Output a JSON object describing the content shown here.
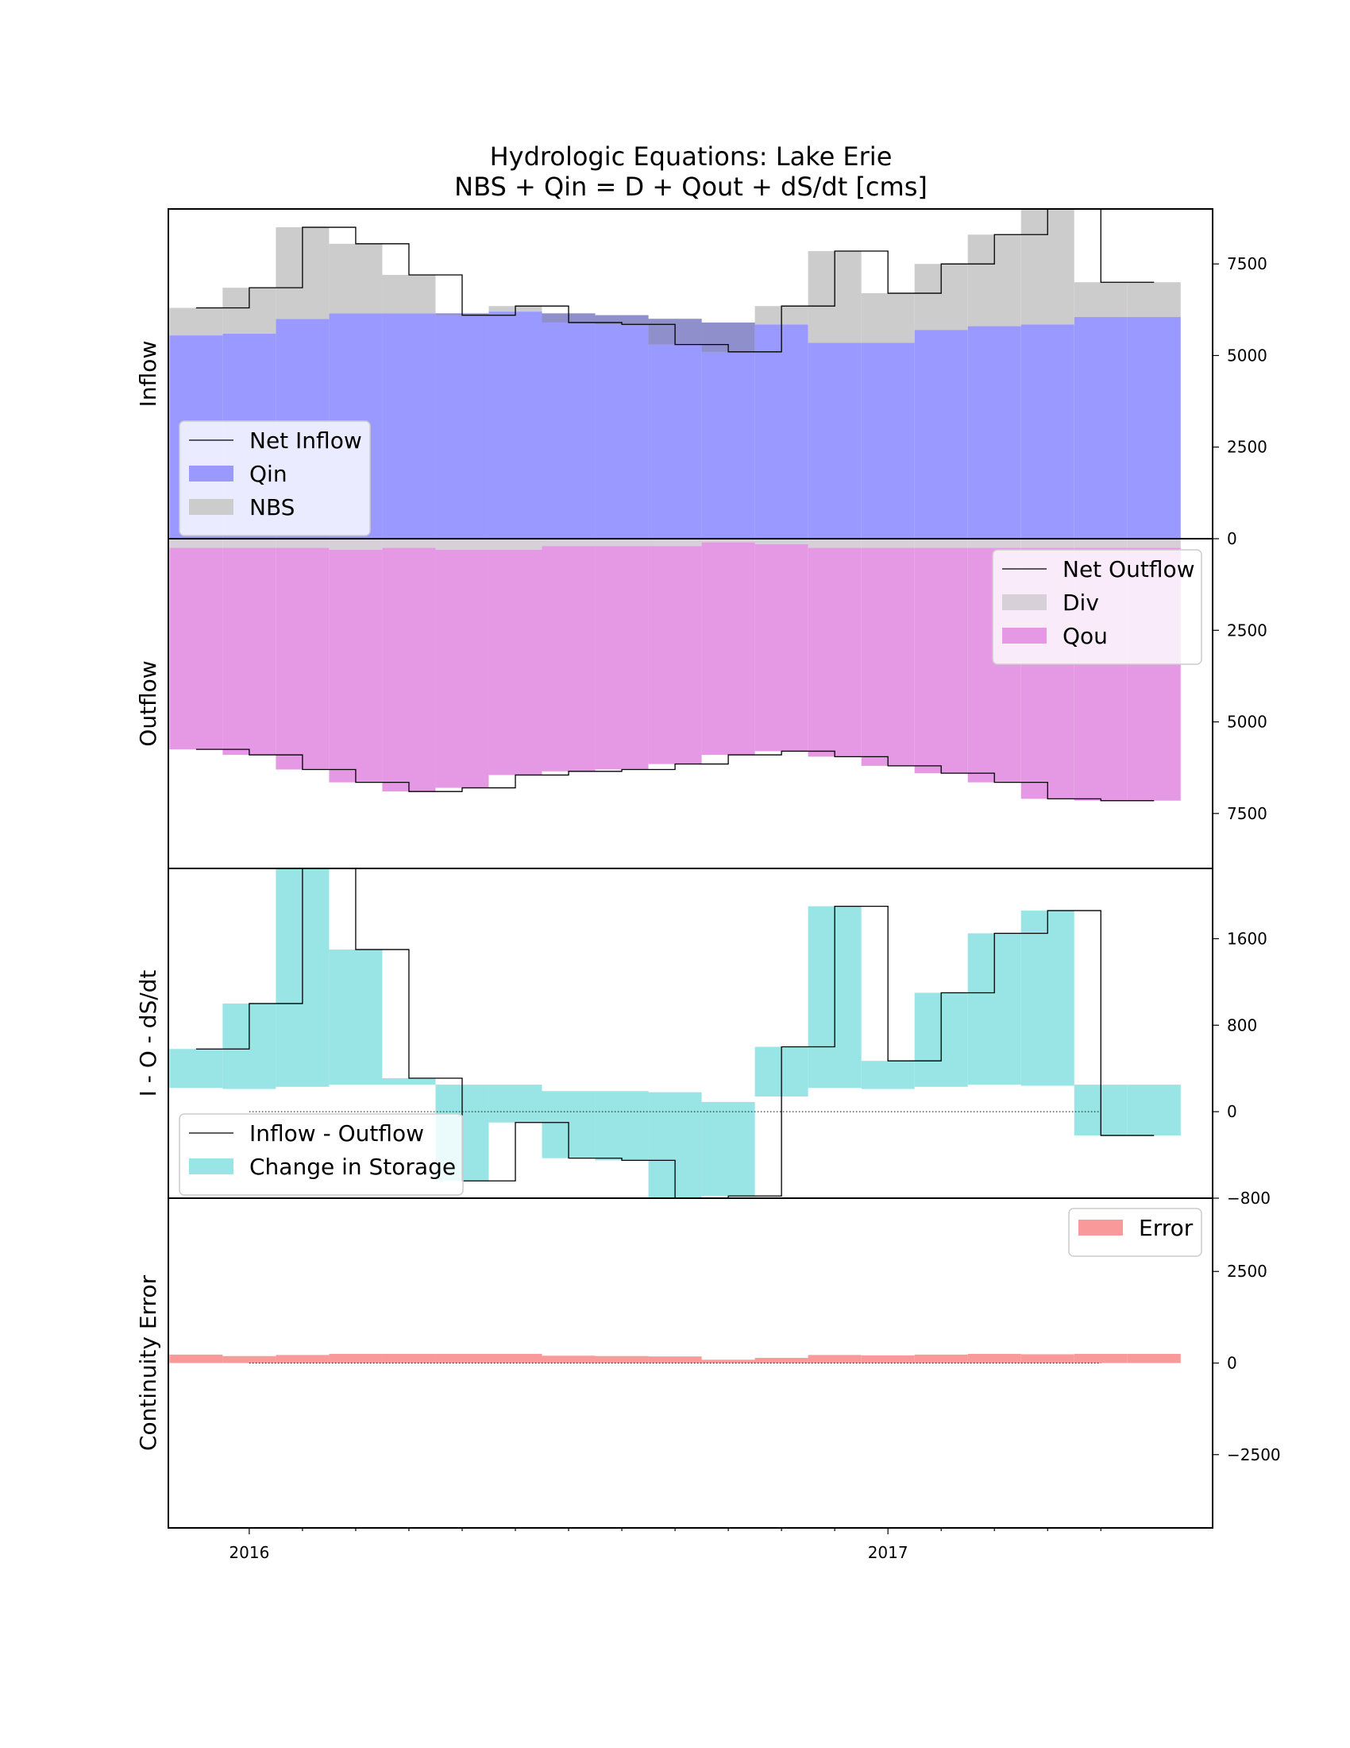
{
  "chart_data": {
    "title": "Hydrologic Equations: Lake Erie",
    "subtitle": "NBS + Qin = D + Qout + dS/dt [cms]",
    "type": "area",
    "x_ticks": [
      "2016",
      "2017"
    ],
    "months": [
      "2015-12",
      "2016-01",
      "2016-02",
      "2016-03",
      "2016-04",
      "2016-05",
      "2016-06",
      "2016-07",
      "2016-08",
      "2016-09",
      "2016-10",
      "2016-11",
      "2016-12",
      "2017-01",
      "2017-02",
      "2017-03",
      "2017-04",
      "2017-05",
      "2017-06"
    ],
    "panels": [
      {
        "ylabel": "Inflow",
        "ylim": [
          0,
          9000
        ],
        "y_ticks": [
          0,
          2500,
          5000,
          7500
        ],
        "legend_position": "lower-left",
        "series": [
          {
            "name": "Net Inflow",
            "kind": "step-line",
            "color": "#000000",
            "values": [
              6300,
              6850,
              8500,
              8050,
              7200,
              6100,
              6350,
              5900,
              5850,
              5300,
              5100,
              6350,
              7850,
              6700,
              7500,
              8300,
              9000,
              7000,
              7000
            ]
          },
          {
            "name": "Qin",
            "kind": "fill",
            "color": "#9999ff",
            "values": [
              5550,
              5600,
              6000,
              6150,
              6150,
              6150,
              6200,
              6150,
              6100,
              6000,
              5900,
              5850,
              5350,
              5350,
              5700,
              5800,
              5850,
              6050,
              6050
            ]
          },
          {
            "name": "NBS",
            "kind": "fill",
            "color": "#cccccc",
            "values": [
              750,
              1250,
              2500,
              1900,
              1050,
              -50,
              150,
              -250,
              -250,
              -700,
              -800,
              500,
              2500,
              1350,
              1800,
              2500,
              3150,
              950,
              950
            ]
          }
        ]
      },
      {
        "ylabel": "Outflow",
        "ylim": [
          9000,
          0
        ],
        "y_ticks": [
          2500,
          5000,
          7500
        ],
        "legend_position": "upper-right",
        "series": [
          {
            "name": "Net Outflow",
            "kind": "step-line",
            "color": "#000000",
            "values": [
              5750,
              5900,
              6300,
              6650,
              6900,
              6800,
              6450,
              6350,
              6300,
              6150,
              5900,
              5800,
              5950,
              6200,
              6400,
              6650,
              7100,
              7150,
              7150
            ]
          },
          {
            "name": "Div",
            "kind": "fill",
            "color": "#d8d0d8",
            "values": [
              250,
              250,
              250,
              300,
              250,
              300,
              300,
              200,
              200,
              200,
              100,
              150,
              250,
              250,
              250,
              250,
              250,
              250,
              250
            ]
          },
          {
            "name": "Qou",
            "kind": "fill",
            "color": "#e599e5",
            "values": [
              5500,
              5650,
              6050,
              6350,
              6650,
              6500,
              6150,
              6150,
              6100,
              5950,
              5800,
              5650,
              5700,
              5950,
              6150,
              6400,
              6850,
              6900,
              6900
            ]
          }
        ]
      },
      {
        "ylabel": "I - O - dS/dt",
        "ylim": [
          -800,
          2250
        ],
        "y_ticks": [
          -800,
          0,
          800,
          1600
        ],
        "legend_position": "lower-left",
        "zero_line": "dotted",
        "series": [
          {
            "name": "Inflow - Outflow",
            "kind": "step-line",
            "color": "#000000",
            "values": [
              580,
              1000,
              2250,
              1500,
              310,
              -640,
              -100,
              -430,
              -450,
              -850,
              -780,
              600,
              1900,
              470,
              1100,
              1650,
              1860,
              -220,
              -220
            ]
          },
          {
            "name": "Change in Storage",
            "kind": "fill-band",
            "color": "#99e5e5",
            "upper": [
              580,
              1000,
              2250,
              1500,
              310,
              250,
              250,
              190,
              190,
              180,
              90,
              600,
              1900,
              470,
              1100,
              1650,
              1860,
              250,
              250
            ],
            "lower": [
              220,
              210,
              230,
              250,
              250,
              -640,
              -100,
              -430,
              -450,
              -850,
              -780,
              140,
              220,
              210,
              230,
              250,
              240,
              -220,
              -220
            ]
          }
        ]
      },
      {
        "ylabel": "Continuity Error",
        "ylim": [
          -4500,
          4500
        ],
        "y_ticks": [
          -2500,
          0,
          2500
        ],
        "legend_position": "upper-right",
        "zero_line": "dotted",
        "series": [
          {
            "name": "Error",
            "kind": "fill",
            "color": "#f99999",
            "values": [
              230,
              190,
              220,
              250,
              250,
              250,
              250,
              200,
              190,
              180,
              90,
              140,
              220,
              210,
              230,
              250,
              240,
              250,
              250
            ]
          }
        ]
      }
    ]
  }
}
